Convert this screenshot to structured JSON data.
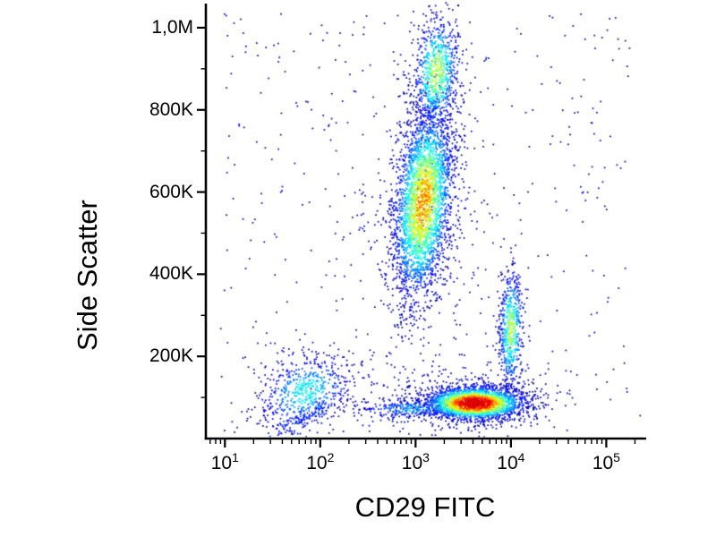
{
  "chart_data": {
    "type": "scatter",
    "subtype": "flow_cytometry_pseudocolor_density",
    "title": "",
    "xlabel": "CD29 FITC",
    "ylabel": "Side Scatter",
    "x_scale": "log10",
    "y_scale": "linear",
    "x_range_log10": [
      0.8,
      5.4
    ],
    "y_range": [
      0,
      1050000
    ],
    "x_ticks": [
      {
        "base": "10",
        "exp": "1",
        "value": 10
      },
      {
        "base": "10",
        "exp": "2",
        "value": 100
      },
      {
        "base": "10",
        "exp": "3",
        "value": 1000
      },
      {
        "base": "10",
        "exp": "4",
        "value": 10000
      },
      {
        "base": "10",
        "exp": "5",
        "value": 100000
      }
    ],
    "x_minor_mantissas": [
      2,
      3,
      4,
      5,
      6,
      7,
      8,
      9
    ],
    "y_ticks": [
      {
        "value": 200000,
        "label": "200K"
      },
      {
        "value": 400000,
        "label": "400K"
      },
      {
        "value": 600000,
        "label": "600K"
      },
      {
        "value": 800000,
        "label": "800K"
      },
      {
        "value": 1000000,
        "label": "1,0M"
      }
    ],
    "y_minor_ticks": [
      100000,
      300000,
      500000,
      700000,
      900000
    ],
    "colormap": "jet",
    "populations": [
      {
        "name": "ssc-high-main",
        "type": "gaussian",
        "count": 3200,
        "x_log10_mean": 3.08,
        "x_log10_sd": 0.16,
        "y_mean": 575000,
        "y_sd": 120000,
        "corr": 0.3,
        "peak": 0.68
      },
      {
        "name": "ssc-high-top",
        "type": "gaussian",
        "count": 800,
        "x_log10_mean": 3.22,
        "x_log10_sd": 0.12,
        "y_mean": 890000,
        "y_sd": 70000,
        "corr": 0.15,
        "peak": 0.55
      },
      {
        "name": "ssc-high-halo",
        "type": "gaussian",
        "count": 260,
        "x_log10_mean": 3.05,
        "x_log10_sd": 0.42,
        "y_mean": 560000,
        "y_sd": 235000,
        "corr": 0,
        "peak": 0.1
      },
      {
        "name": "cd29-bright-dense-bottom",
        "type": "gaussian",
        "count": 2700,
        "x_log10_mean": 3.62,
        "x_log10_sd": 0.26,
        "y_mean": 86000,
        "y_sd": 20000,
        "corr": 0,
        "peak": 0.93
      },
      {
        "name": "bottom-left-tail",
        "type": "gaussian",
        "count": 300,
        "x_log10_mean": 2.95,
        "x_log10_sd": 0.3,
        "y_mean": 72000,
        "y_sd": 13000,
        "corr": 0,
        "peak": 0.28
      },
      {
        "name": "bottom-halo",
        "type": "gaussian",
        "count": 260,
        "x_log10_mean": 3.65,
        "x_log10_sd": 0.55,
        "y_mean": 100000,
        "y_sd": 55000,
        "corr": 0,
        "peak": 0.1
      },
      {
        "name": "mid-right-streak",
        "type": "gaussian",
        "count": 620,
        "x_log10_mean": 4.0,
        "x_log10_sd": 0.065,
        "y_mean": 265000,
        "y_sd": 75000,
        "corr": 0.1,
        "peak": 0.52
      },
      {
        "name": "debris-low-left",
        "type": "gaussian",
        "count": 620,
        "x_log10_mean": 1.85,
        "x_log10_sd": 0.25,
        "y_mean": 115000,
        "y_sd": 46000,
        "corr": 0.25,
        "peak": 0.38
      },
      {
        "name": "debris-diagonal",
        "type": "line",
        "count": 90,
        "x_log10_from": 1.55,
        "y_from": 8000,
        "x_log10_to": 2.05,
        "y_to": 82000,
        "x_jitter_sd": 0.05,
        "y_jitter_sd": 9000,
        "peak": 0.2
      },
      {
        "name": "background-noise",
        "type": "uniform",
        "count": 420,
        "x_log10_range": [
          0.95,
          5.25
        ],
        "y_range": [
          15000,
          1040000
        ],
        "peak": 0.08
      }
    ]
  }
}
